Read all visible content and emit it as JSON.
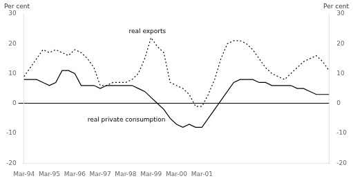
{
  "chart_data": {
    "type": "line",
    "ylabel": "Per cent",
    "y2label": "Per cent",
    "categories": [
      "Mar-94",
      null,
      null,
      null,
      "Mar-95",
      null,
      null,
      null,
      "Mar-96",
      null,
      null,
      null,
      "Mar-97",
      null,
      null,
      null,
      "Mar-98",
      null,
      null,
      null,
      "Mar-99",
      null,
      null,
      null,
      "Mar-00",
      null,
      null,
      null,
      "Mar-01",
      null,
      null,
      null,
      null,
      null,
      null,
      null,
      null,
      null,
      null,
      null,
      null,
      null,
      null,
      null,
      null,
      null,
      null,
      null,
      null
    ],
    "series": [
      {
        "name": "real exports",
        "color": "#000000",
        "line_style": "dotted",
        "values": [
          9,
          12,
          15,
          18,
          17,
          18,
          17,
          16,
          18,
          17,
          15,
          12,
          6,
          6,
          7,
          7,
          7,
          8,
          10,
          15,
          22,
          19,
          17,
          7,
          6,
          5,
          3,
          -1,
          -1,
          3,
          8,
          15,
          20,
          21,
          21,
          20,
          18,
          15,
          12,
          10,
          9,
          8,
          10,
          12,
          14,
          15,
          16,
          14,
          11
        ]
      },
      {
        "name": "real private consumption",
        "color": "#000000",
        "line_style": "solid",
        "values": [
          8,
          8,
          8,
          7,
          6,
          7,
          11,
          11,
          10,
          6,
          6,
          6,
          5,
          6,
          6,
          6,
          6,
          6,
          5,
          4,
          2,
          0,
          -2,
          -5,
          -7,
          -8,
          -7,
          -8,
          -8,
          -5,
          -2,
          1,
          4,
          7,
          8,
          8,
          8,
          7,
          7,
          6,
          6,
          6,
          6,
          5,
          5,
          4,
          3,
          3,
          3
        ]
      }
    ],
    "ylim": [
      -20,
      30
    ],
    "yticks": [
      -20,
      -10,
      0,
      10,
      20,
      30
    ],
    "y2lim": [
      -20,
      30
    ],
    "y2ticks": [
      -20,
      -10,
      0,
      10,
      20,
      30
    ],
    "annotations": [
      {
        "text": "real exports",
        "x": 16.5,
        "y": 23
      },
      {
        "text": "real private consumption",
        "x": 10,
        "y": -4.5
      }
    ],
    "grid": false
  }
}
